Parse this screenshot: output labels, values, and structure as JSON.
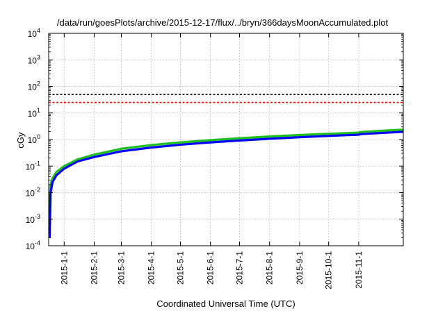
{
  "chart_data": {
    "type": "line",
    "title": "/data/run/goesPlots/archive/2015-12-17/flux/../bryn/366daysMoonAccumulated.plot",
    "xlabel": "Coordinated Universal Time (UTC)",
    "ylabel": "cGy",
    "x_range": [
      "2014-12-16",
      "2015-12-17"
    ],
    "y_scale": "log",
    "ylim": [
      0.0001,
      10000
    ],
    "y_ticks": [
      {
        "value": 0.0001,
        "base": "10",
        "exp": "-4"
      },
      {
        "value": 0.001,
        "base": "10",
        "exp": "-3"
      },
      {
        "value": 0.01,
        "base": "10",
        "exp": "-2"
      },
      {
        "value": 0.1,
        "base": "10",
        "exp": "-1"
      },
      {
        "value": 1,
        "base": "10",
        "exp": "0"
      },
      {
        "value": 10,
        "base": "10",
        "exp": "1"
      },
      {
        "value": 100,
        "base": "10",
        "exp": "2"
      },
      {
        "value": 1000,
        "base": "10",
        "exp": "3"
      },
      {
        "value": 10000,
        "base": "10",
        "exp": "4"
      }
    ],
    "x_ticks": [
      {
        "date": "2015-01-01",
        "label": "2015-1-1"
      },
      {
        "date": "2015-02-01",
        "label": "2015-2-1"
      },
      {
        "date": "2015-03-01",
        "label": "2015-3-1"
      },
      {
        "date": "2015-04-01",
        "label": "2015-4-1"
      },
      {
        "date": "2015-05-01",
        "label": "2015-5-1"
      },
      {
        "date": "2015-06-01",
        "label": "2015-6-1"
      },
      {
        "date": "2015-07-01",
        "label": "2015-7-1"
      },
      {
        "date": "2015-08-01",
        "label": "2015-8-1"
      },
      {
        "date": "2015-09-01",
        "label": "2015-9-1"
      },
      {
        "date": "2015-10-01",
        "label": "2015-10-1"
      },
      {
        "date": "2015-11-01",
        "label": "2015-11-1"
      }
    ],
    "grid": true,
    "reference_lines": [
      {
        "value": 50,
        "color": "#000000",
        "style": "dashed"
      },
      {
        "value": 25,
        "color": "#ff0000",
        "style": "dashed"
      }
    ],
    "series": [
      {
        "color": "#1fbf1f",
        "x": [
          "2014-12-17",
          "2014-12-18",
          "2014-12-20",
          "2014-12-24",
          "2015-01-01",
          "2015-01-15",
          "2015-02-01",
          "2015-03-01",
          "2015-04-01",
          "2015-05-01",
          "2015-06-01",
          "2015-07-01",
          "2015-08-01",
          "2015-09-01",
          "2015-10-01",
          "2015-11-01",
          "2015-11-03",
          "2015-12-01",
          "2015-12-17"
        ],
        "y": [
          0.0015,
          0.02,
          0.035,
          0.06,
          0.1,
          0.18,
          0.27,
          0.45,
          0.62,
          0.78,
          0.95,
          1.12,
          1.3,
          1.48,
          1.65,
          1.82,
          1.92,
          2.2,
          2.35
        ]
      },
      {
        "color": "#0000ff",
        "x": [
          "2014-12-17",
          "2014-12-18",
          "2014-12-20",
          "2014-12-24",
          "2015-01-01",
          "2015-01-15",
          "2015-02-01",
          "2015-03-01",
          "2015-04-01",
          "2015-05-01",
          "2015-06-01",
          "2015-07-01",
          "2015-08-01",
          "2015-09-01",
          "2015-10-01",
          "2015-11-01",
          "2015-11-03",
          "2015-12-01",
          "2015-12-17"
        ],
        "y": [
          0.0002,
          0.01,
          0.025,
          0.045,
          0.08,
          0.15,
          0.22,
          0.36,
          0.5,
          0.64,
          0.78,
          0.92,
          1.07,
          1.22,
          1.37,
          1.52,
          1.6,
          1.82,
          1.95
        ]
      }
    ]
  }
}
